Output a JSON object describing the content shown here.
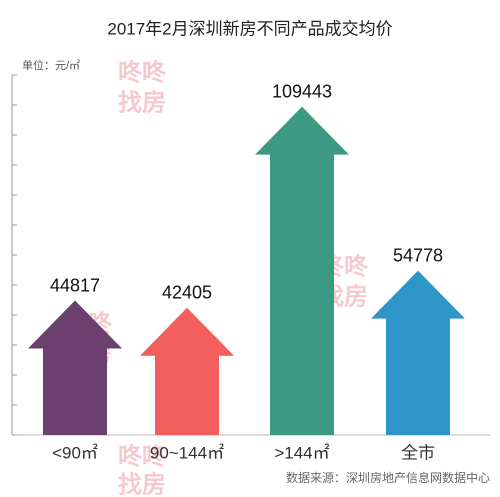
{
  "chart_data": {
    "type": "arrow-bar",
    "title": "2017年2月深圳新房不同产品成交均价",
    "unit_label": "单位：元/㎡",
    "source": "数据来源：深圳房地产信息网数据中心",
    "watermark": [
      "咚咚",
      "找房"
    ],
    "categories": [
      "<90㎡",
      "90~144㎡",
      ">144㎡",
      "全市"
    ],
    "values": [
      44817,
      42405,
      109443,
      54778
    ],
    "colors": [
      "#6b3f6e",
      "#f25f5c",
      "#3d9a82",
      "#2e95c8"
    ],
    "ylim": [
      0,
      120000
    ],
    "yticks": [
      0,
      10000,
      20000,
      30000,
      40000,
      50000,
      60000,
      70000,
      80000,
      90000,
      100000,
      110000,
      120000
    ]
  }
}
